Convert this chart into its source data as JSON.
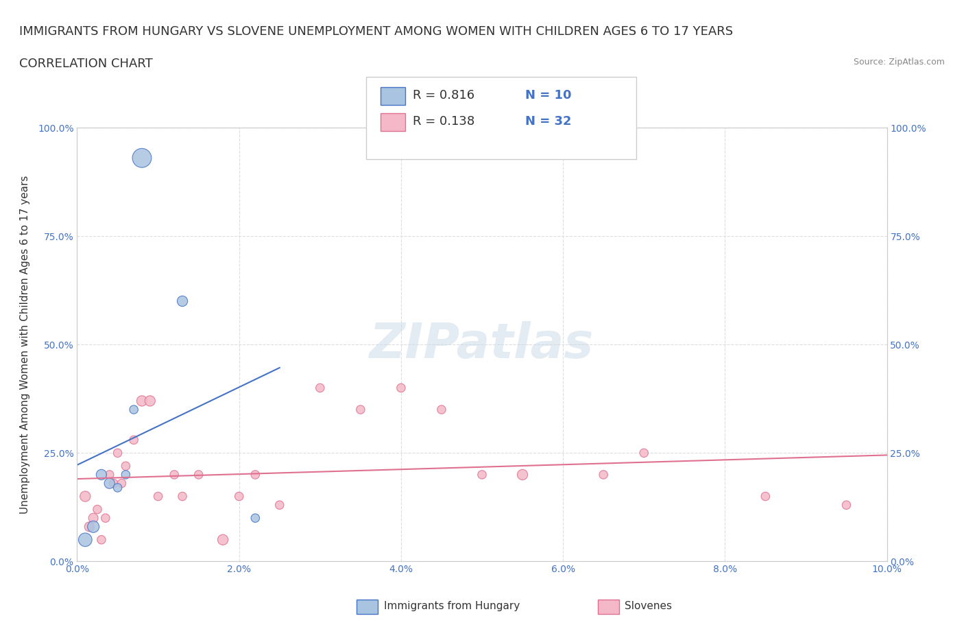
{
  "title_line1": "IMMIGRANTS FROM HUNGARY VS SLOVENE UNEMPLOYMENT AMONG WOMEN WITH CHILDREN AGES 6 TO 17 YEARS",
  "title_line2": "CORRELATION CHART",
  "source_text": "Source: ZipAtlas.com",
  "xlabel": "",
  "ylabel": "Unemployment Among Women with Children Ages 6 to 17 years",
  "xlim": [
    0,
    10.0
  ],
  "ylim": [
    0,
    100.0
  ],
  "xticks": [
    0.0,
    2.0,
    4.0,
    6.0,
    8.0,
    10.0
  ],
  "xtick_labels": [
    "0.0%",
    "2.0%",
    "4.0%",
    "6.0%",
    "8.0%",
    "10.0%"
  ],
  "yticks": [
    0,
    25,
    50,
    75,
    100
  ],
  "ytick_labels": [
    "0.0%",
    "25.0%",
    "50.0%",
    "75.0%",
    "100.0%"
  ],
  "hungary_color": "#a8c4e0",
  "hungary_edge_color": "#4472c4",
  "slovene_color": "#f4b8c8",
  "slovene_edge_color": "#e07090",
  "trend_hungary_color": "#4472c4",
  "trend_slovene_color": "#e07090",
  "watermark": "ZIPatlas",
  "legend_r_hungary": "R = 0.816",
  "legend_n_hungary": "N = 10",
  "legend_r_slovene": "R = 0.138",
  "legend_n_slovene": "N = 32",
  "hungary_x": [
    0.1,
    0.2,
    0.3,
    0.4,
    0.5,
    0.6,
    0.7,
    0.8,
    1.3,
    2.2
  ],
  "hungary_y": [
    5,
    8,
    20,
    18,
    17,
    20,
    35,
    93,
    60,
    10
  ],
  "hungary_sizes": [
    200,
    150,
    120,
    120,
    80,
    80,
    80,
    400,
    120,
    80
  ],
  "slovene_x": [
    0.1,
    0.15,
    0.2,
    0.25,
    0.3,
    0.35,
    0.4,
    0.45,
    0.5,
    0.55,
    0.6,
    0.7,
    0.8,
    0.9,
    1.0,
    1.2,
    1.3,
    1.5,
    1.8,
    2.0,
    2.2,
    2.5,
    3.0,
    3.5,
    4.0,
    4.5,
    5.0,
    5.5,
    6.5,
    7.0,
    8.5,
    9.5
  ],
  "slovene_y": [
    15,
    8,
    10,
    12,
    5,
    10,
    20,
    18,
    25,
    18,
    22,
    28,
    37,
    37,
    15,
    20,
    15,
    20,
    5,
    15,
    20,
    13,
    40,
    35,
    40,
    35,
    20,
    20,
    20,
    25,
    15,
    13
  ],
  "slovene_sizes": [
    120,
    100,
    100,
    80,
    80,
    80,
    80,
    80,
    80,
    80,
    80,
    80,
    120,
    120,
    80,
    80,
    80,
    80,
    120,
    80,
    80,
    80,
    80,
    80,
    80,
    80,
    80,
    120,
    80,
    80,
    80,
    80
  ],
  "background_color": "#ffffff",
  "grid_color": "#dddddd",
  "title_fontsize": 13,
  "axis_label_fontsize": 11,
  "tick_fontsize": 10,
  "legend_fontsize": 13
}
